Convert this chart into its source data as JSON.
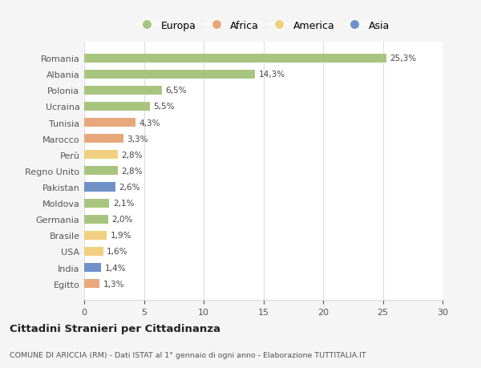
{
  "countries": [
    "Romania",
    "Albania",
    "Polonia",
    "Ucraina",
    "Tunisia",
    "Marocco",
    "Perù",
    "Regno Unito",
    "Pakistan",
    "Moldova",
    "Germania",
    "Brasile",
    "USA",
    "India",
    "Egitto"
  ],
  "values": [
    25.3,
    14.3,
    6.5,
    5.5,
    4.3,
    3.3,
    2.8,
    2.8,
    2.6,
    2.1,
    2.0,
    1.9,
    1.6,
    1.4,
    1.3
  ],
  "labels": [
    "25,3%",
    "14,3%",
    "6,5%",
    "5,5%",
    "4,3%",
    "3,3%",
    "2,8%",
    "2,8%",
    "2,6%",
    "2,1%",
    "2,0%",
    "1,9%",
    "1,6%",
    "1,4%",
    "1,3%"
  ],
  "continents": [
    "Europa",
    "Europa",
    "Europa",
    "Europa",
    "Africa",
    "Africa",
    "America",
    "Europa",
    "Asia",
    "Europa",
    "Europa",
    "America",
    "America",
    "Asia",
    "Africa"
  ],
  "colors": {
    "Europa": "#a8c580",
    "Africa": "#e8a87c",
    "America": "#f0d080",
    "Asia": "#7090c8"
  },
  "title": "Cittadini Stranieri per Cittadinanza",
  "subtitle": "COMUNE DI ARICCIA (RM) - Dati ISTAT al 1° gennaio di ogni anno - Elaborazione TUTTITALIA.IT",
  "xlim": [
    0,
    30
  ],
  "xticks": [
    0,
    5,
    10,
    15,
    20,
    25,
    30
  ],
  "background_color": "#f5f5f5",
  "plot_background": "#ffffff",
  "grid_color": "#dddddd"
}
